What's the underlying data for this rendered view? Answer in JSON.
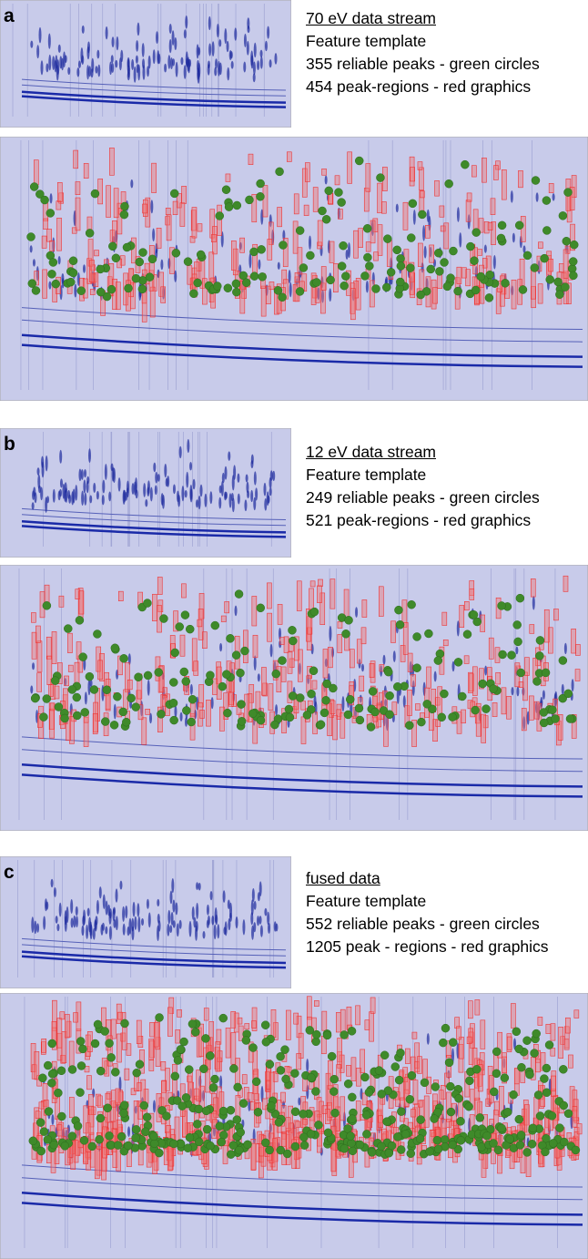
{
  "panels": [
    {
      "letter": "a",
      "title": "70 eV data stream",
      "lines": [
        "Feature template",
        "355 reliable peaks - green circles",
        "454 peak-regions - red graphics"
      ]
    },
    {
      "letter": "b",
      "title": "12 eV data stream",
      "lines": [
        "Feature template",
        "249 reliable peaks - green circles",
        "521 peak-regions - red graphics"
      ]
    },
    {
      "letter": "c",
      "title": "fused data",
      "lines": [
        "Feature template",
        "552 reliable peaks - green circles",
        "1205 peak - regions - red graphics"
      ]
    }
  ]
}
